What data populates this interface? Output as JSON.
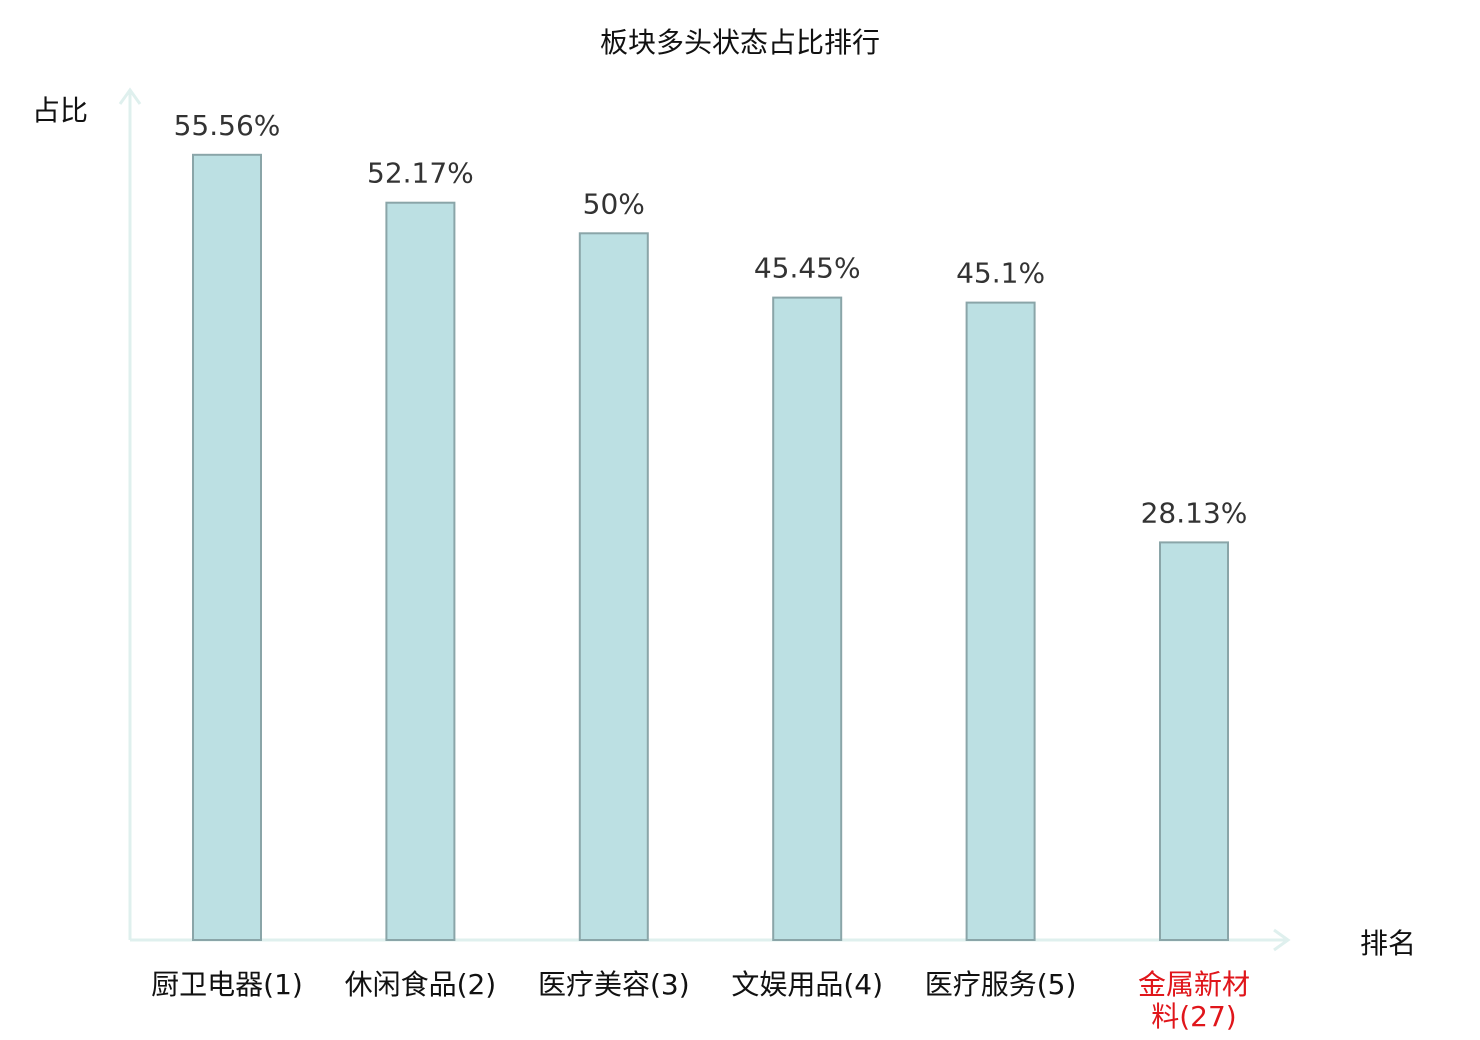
{
  "chart_data": {
    "type": "bar",
    "title": "板块多头状态占比排行",
    "ylabel": "占比",
    "xlabel": "排名",
    "categories": [
      [
        "厨卫电器(1)"
      ],
      [
        "休闲食品(2)"
      ],
      [
        "医疗美容(3)"
      ],
      [
        "文娱用品(4)"
      ],
      [
        "医疗服务(5)"
      ],
      [
        "金属新材",
        "料(27)"
      ]
    ],
    "values": [
      55.56,
      52.17,
      50,
      45.45,
      45.1,
      28.13
    ],
    "value_labels": [
      "55.56%",
      "52.17%",
      "50%",
      "45.45%",
      "45.1%",
      "28.13%"
    ],
    "highlight_index": 5,
    "ylim": [
      0,
      60
    ],
    "grid": false,
    "legend": "none"
  },
  "colors": {
    "bar_fill": "#bce0e3",
    "bar_stroke": "#8aa5a8",
    "axis": "#dff0ee",
    "text": "#111111",
    "value_text": "#333333",
    "highlight": "#e0161b"
  }
}
